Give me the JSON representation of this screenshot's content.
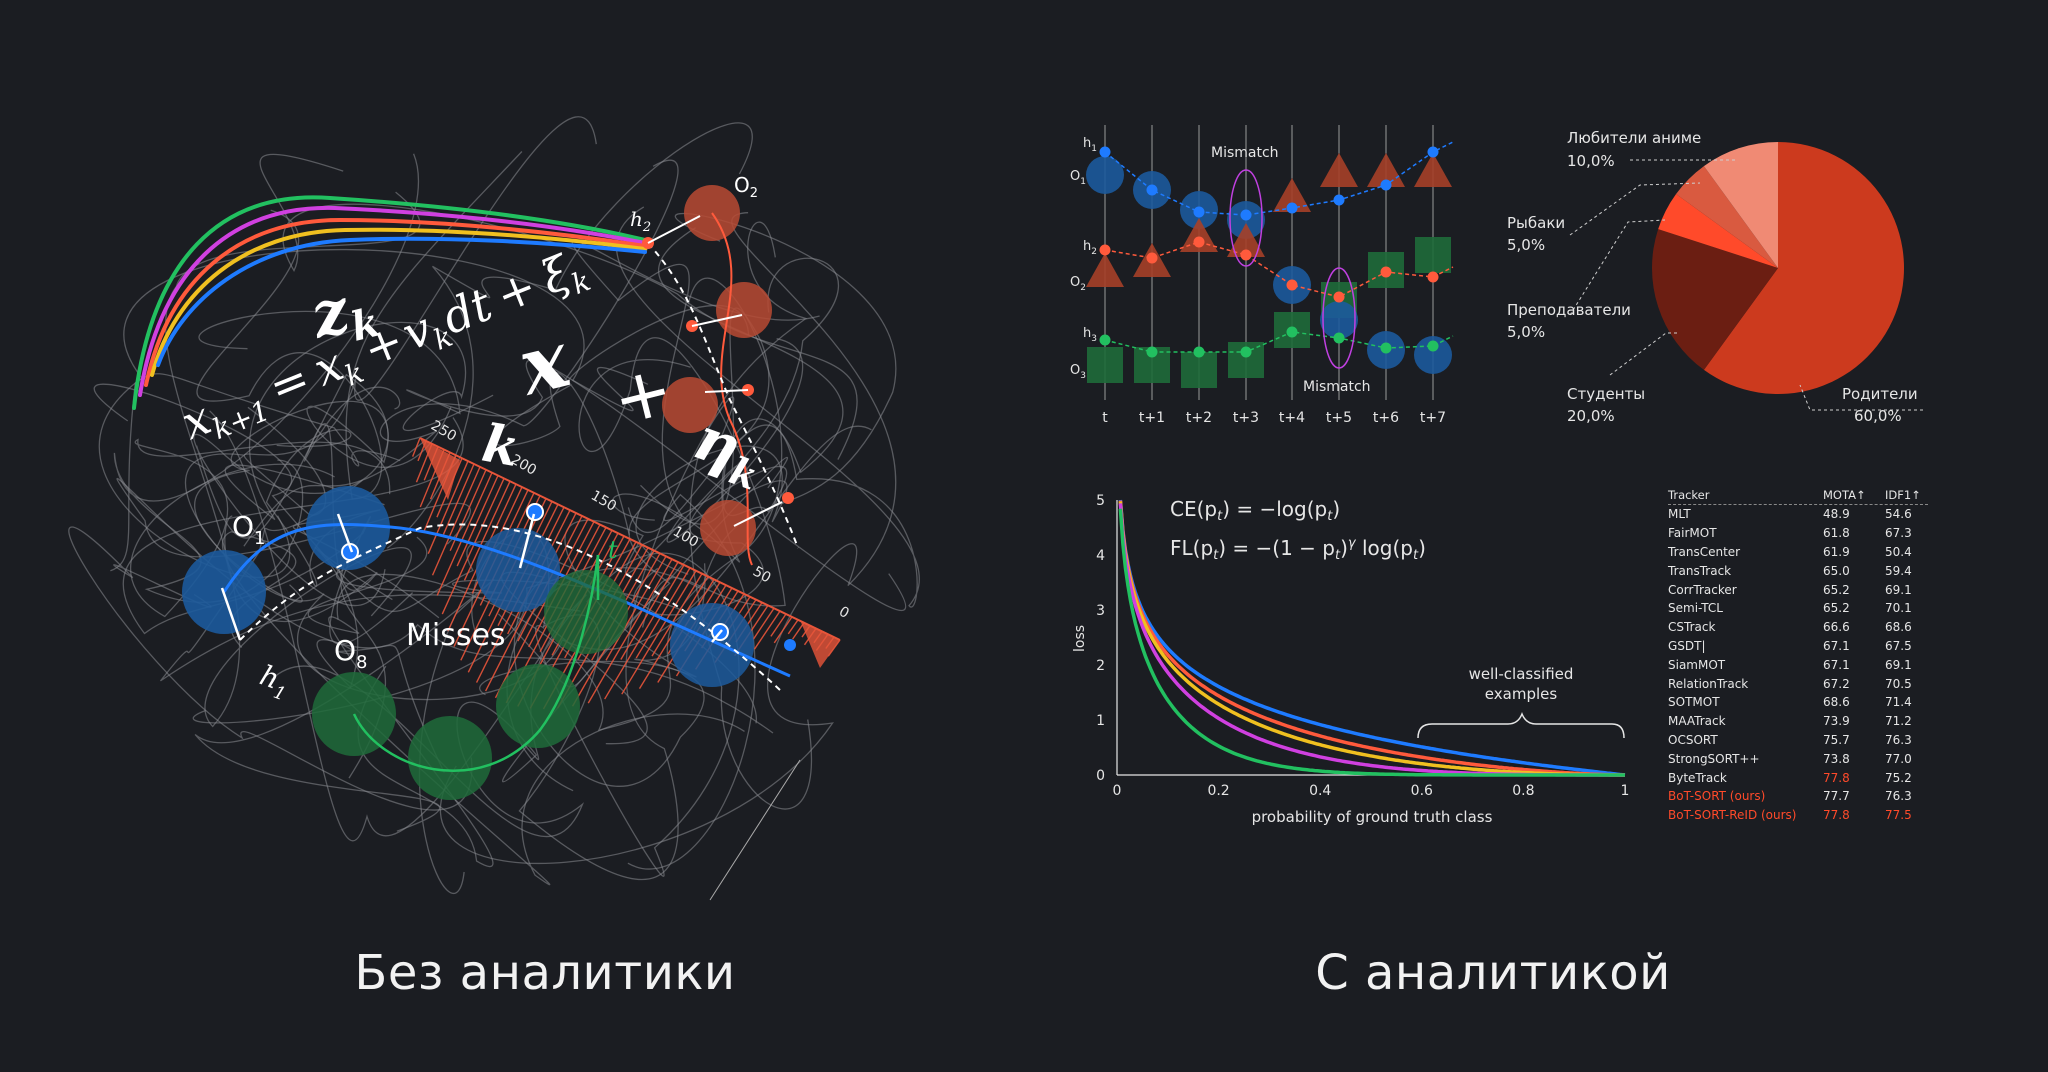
{
  "captions": {
    "left": "Без аналитики",
    "right": "С аналитикой"
  },
  "left_art": {
    "equation": [
      "x",
      "k+1",
      "=",
      "x",
      "k",
      "+",
      "v",
      "k",
      "dt",
      "+",
      "ξ",
      "k"
    ],
    "z_label": "z",
    "z_sub": "k",
    "big_x": "x",
    "plus": "+",
    "eta": "η",
    "eta_sub": "k",
    "k_label": "k",
    "o1": "O",
    "o1_sub": "1",
    "o2": "O",
    "o2_sub": "2",
    "o8": "O",
    "o8_sub": "8",
    "h1": "h",
    "h1_sub": "1",
    "h2": "h",
    "h2_sub": "2",
    "misses": "Misses",
    "t_label": "t",
    "ruler_ticks": [
      "250",
      "200",
      "150",
      "100",
      "50",
      "0"
    ]
  },
  "tracking_diagram": {
    "x_labels": [
      "t",
      "t+1",
      "t+2",
      "t+3",
      "t+4",
      "t+5",
      "t+6",
      "t+7"
    ],
    "mismatch_top": "Mismatch",
    "mismatch_bottom": "Mismatch",
    "row_labels": {
      "h1": "h",
      "h1_sub": "1",
      "o1": "O",
      "o1_sub": "1",
      "h2": "h",
      "h2_sub": "2",
      "o2": "O",
      "o2_sub": "2",
      "h3": "h",
      "h3_sub": "3",
      "o3": "O",
      "o3_sub": "3"
    }
  },
  "pie": {
    "slices": [
      {
        "name": "Любители аниме",
        "pct": "10,0%",
        "value": 10,
        "color": "#f08a74"
      },
      {
        "name": "Рыбаки",
        "pct": "5,0%",
        "value": 5,
        "color": "#d95a40"
      },
      {
        "name": "Преподаватели",
        "pct": "5,0%",
        "value": 5,
        "color": "#ff4a2a"
      },
      {
        "name": "Студенты",
        "pct": "20,0%",
        "value": 20,
        "color": "#6b1e12"
      },
      {
        "name": "Родители",
        "pct": "60,0%",
        "value": 60,
        "color": "#cc3a1e"
      }
    ]
  },
  "loss_chart": {
    "ce_formula": "CE(p",
    "ce_tail": ") = −log(p",
    "ce_end": ")",
    "fl_formula": "FL(p",
    "fl_mid": ") = −(1 − p",
    "fl_tail": ")",
    "fl_gamma": "γ",
    "fl_log": " log(p",
    "fl_end": ")",
    "sub_t": "t",
    "ylabel": "loss",
    "xlabel": "probability of ground truth class",
    "annotation_line1": "well-classified",
    "annotation_line2": "examples",
    "x_ticks": [
      "0",
      "0.2",
      "0.4",
      "0.6",
      "0.8",
      "1"
    ],
    "y_ticks": [
      "0",
      "1",
      "2",
      "3",
      "4",
      "5"
    ],
    "series_colors": [
      "#1e7bff",
      "#ff5a3c",
      "#f0c020",
      "#d040e0",
      "#22c060"
    ],
    "gammas": [
      0,
      0.5,
      1,
      2,
      5
    ]
  },
  "tracker_table": {
    "headers": [
      "Tracker",
      "MOTA↑",
      "IDF1↑"
    ],
    "rows": [
      {
        "name": "MLT",
        "mota": "48.9",
        "idf1": "54.6",
        "hl_name": false,
        "hl_mota": false,
        "hl_idf1": false
      },
      {
        "name": "FairMOT",
        "mota": "61.8",
        "idf1": "67.3",
        "hl_name": false,
        "hl_mota": false,
        "hl_idf1": false
      },
      {
        "name": "TransCenter",
        "mota": "61.9",
        "idf1": "50.4",
        "hl_name": false,
        "hl_mota": false,
        "hl_idf1": false
      },
      {
        "name": "TransTrack",
        "mota": "65.0",
        "idf1": "59.4",
        "hl_name": false,
        "hl_mota": false,
        "hl_idf1": false
      },
      {
        "name": "CorrTracker",
        "mota": "65.2",
        "idf1": "69.1",
        "hl_name": false,
        "hl_mota": false,
        "hl_idf1": false
      },
      {
        "name": "Semi-TCL",
        "mota": "65.2",
        "idf1": "70.1",
        "hl_name": false,
        "hl_mota": false,
        "hl_idf1": false
      },
      {
        "name": "CSTrack",
        "mota": "66.6",
        "idf1": "68.6",
        "hl_name": false,
        "hl_mota": false,
        "hl_idf1": false
      },
      {
        "name": "GSDT|",
        "mota": "67.1",
        "idf1": "67.5",
        "hl_name": false,
        "hl_mota": false,
        "hl_idf1": false
      },
      {
        "name": "SiamMOT",
        "mota": "67.1",
        "idf1": "69.1",
        "hl_name": false,
        "hl_mota": false,
        "hl_idf1": false
      },
      {
        "name": "RelationTrack",
        "mota": "67.2",
        "idf1": "70.5",
        "hl_name": false,
        "hl_mota": false,
        "hl_idf1": false
      },
      {
        "name": "SOTMOT",
        "mota": "68.6",
        "idf1": "71.4",
        "hl_name": false,
        "hl_mota": false,
        "hl_idf1": false
      },
      {
        "name": "MAATrack",
        "mota": "73.9",
        "idf1": "71.2",
        "hl_name": false,
        "hl_mota": false,
        "hl_idf1": false
      },
      {
        "name": "OCSORT",
        "mota": "75.7",
        "idf1": "76.3",
        "hl_name": false,
        "hl_mota": false,
        "hl_idf1": false
      },
      {
        "name": "StrongSORT++",
        "mota": "73.8",
        "idf1": "77.0",
        "hl_name": false,
        "hl_mota": false,
        "hl_idf1": false
      },
      {
        "name": "ByteTrack",
        "mota": "77.8",
        "idf1": "75.2",
        "hl_name": false,
        "hl_mota": true,
        "hl_idf1": false
      },
      {
        "name": "BoT-SORT (ours)",
        "mota": "77.7",
        "idf1": "76.3",
        "hl_name": true,
        "hl_mota": false,
        "hl_idf1": false
      },
      {
        "name": "BoT-SORT-ReID (ours)",
        "mota": "77.8",
        "idf1": "77.5",
        "hl_name": true,
        "hl_mota": true,
        "hl_idf1": true
      }
    ],
    "highlight_color": "#ff4a2a"
  }
}
